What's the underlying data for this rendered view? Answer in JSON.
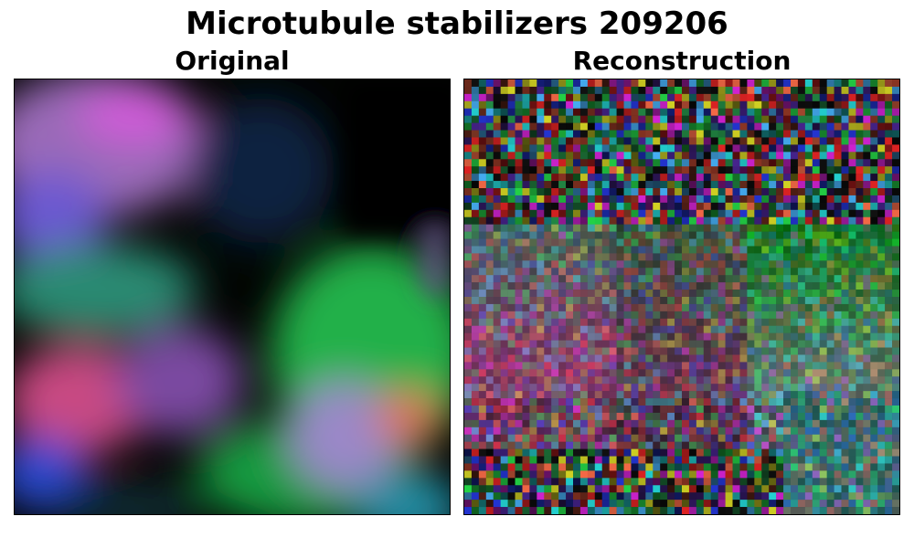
{
  "figure": {
    "title": "Microtubule stabilizers 209206",
    "panels": [
      {
        "label": "Original",
        "kind": "blurred-microscopy"
      },
      {
        "label": "Reconstruction",
        "kind": "noisy-pixel-reconstruction"
      }
    ]
  },
  "colors": {
    "background": "#000000",
    "green": "#22c94a",
    "magenta": "#d04a90",
    "blue": "#3858d8",
    "teal": "#2fb2a6",
    "orange": "#e06a4a",
    "violet": "#8a6ae0"
  }
}
